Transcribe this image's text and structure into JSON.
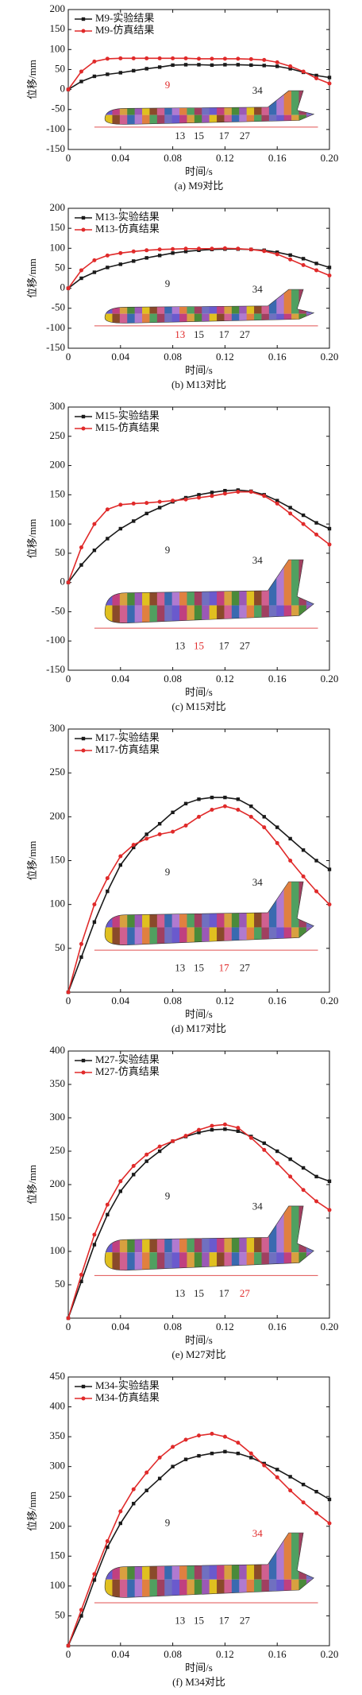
{
  "chart_data": [
    {
      "type": "line",
      "caption": "(a) M9对比",
      "xlabel": "时间/s",
      "ylabel": "位移/mm",
      "x": [
        0,
        0.01,
        0.02,
        0.03,
        0.04,
        0.05,
        0.06,
        0.07,
        0.08,
        0.09,
        0.1,
        0.11,
        0.12,
        0.13,
        0.14,
        0.15,
        0.16,
        0.17,
        0.18,
        0.19,
        0.2
      ],
      "xlim": [
        0,
        0.2
      ],
      "xticks": [
        0,
        0.04,
        0.08,
        0.12,
        0.16,
        {
          "value": 0.2,
          "label": "0.20"
        }
      ],
      "ylim": [
        -150,
        200
      ],
      "yticks": [
        -150,
        -100,
        -50,
        0,
        50,
        100,
        150,
        200
      ],
      "legend": "upper left",
      "series": [
        {
          "name": "M9-实验结果",
          "color": "#1a1a1a",
          "marker": "square",
          "values": [
            0,
            20,
            33,
            38,
            42,
            47,
            52,
            56,
            61,
            62,
            62,
            61,
            62,
            62,
            61,
            60,
            58,
            52,
            43,
            35,
            30
          ]
        },
        {
          "name": "M9-仿真结果",
          "color": "#e02a2a",
          "marker": "circle",
          "values": [
            0,
            45,
            70,
            77,
            78,
            78,
            78,
            78,
            78,
            78,
            77,
            77,
            77,
            77,
            76,
            74,
            68,
            58,
            45,
            28,
            15
          ]
        }
      ],
      "inset_labels": [
        {
          "text": "9",
          "color": "#e02a2a"
        },
        {
          "text": "34",
          "color": "#222"
        },
        {
          "text": "13",
          "color": "#222"
        },
        {
          "text": "15",
          "color": "#222"
        },
        {
          "text": "17",
          "color": "#222"
        },
        {
          "text": "27",
          "color": "#222"
        }
      ]
    },
    {
      "type": "line",
      "caption": "(b) M13对比",
      "xlabel": "时间/s",
      "ylabel": "位移/mm",
      "x": [
        0,
        0.01,
        0.02,
        0.03,
        0.04,
        0.05,
        0.06,
        0.07,
        0.08,
        0.09,
        0.1,
        0.11,
        0.12,
        0.13,
        0.14,
        0.15,
        0.16,
        0.17,
        0.18,
        0.19,
        0.2
      ],
      "xlim": [
        0,
        0.2
      ],
      "xticks": [
        0,
        0.04,
        0.08,
        0.12,
        0.16,
        {
          "value": 0.2,
          "label": "0.20"
        }
      ],
      "ylim": [
        -150,
        200
      ],
      "yticks": [
        -150,
        -100,
        -50,
        0,
        50,
        100,
        150,
        200
      ],
      "legend": "upper left",
      "series": [
        {
          "name": "M13-实验结果",
          "color": "#1a1a1a",
          "marker": "square",
          "values": [
            0,
            25,
            40,
            52,
            60,
            68,
            76,
            82,
            88,
            92,
            95,
            97,
            98,
            98,
            97,
            95,
            90,
            83,
            74,
            62,
            52
          ]
        },
        {
          "name": "M13-仿真结果",
          "color": "#e02a2a",
          "marker": "circle",
          "values": [
            0,
            45,
            70,
            82,
            88,
            92,
            95,
            97,
            98,
            99,
            99,
            99,
            100,
            99,
            97,
            93,
            85,
            72,
            58,
            45,
            32
          ]
        }
      ],
      "inset_labels": [
        {
          "text": "9",
          "color": "#222"
        },
        {
          "text": "34",
          "color": "#222"
        },
        {
          "text": "13",
          "color": "#e02a2a"
        },
        {
          "text": "15",
          "color": "#222"
        },
        {
          "text": "17",
          "color": "#222"
        },
        {
          "text": "27",
          "color": "#222"
        }
      ]
    },
    {
      "type": "line",
      "caption": "(c) M15对比",
      "xlabel": "时间/s",
      "ylabel": "位移/mm",
      "x": [
        0,
        0.01,
        0.02,
        0.03,
        0.04,
        0.05,
        0.06,
        0.07,
        0.08,
        0.09,
        0.1,
        0.11,
        0.12,
        0.13,
        0.14,
        0.15,
        0.16,
        0.17,
        0.18,
        0.19,
        0.2
      ],
      "xlim": [
        0,
        0.2
      ],
      "xticks": [
        0,
        0.04,
        0.08,
        0.12,
        0.16,
        {
          "value": 0.2,
          "label": "0.20"
        }
      ],
      "ylim": [
        -150,
        300
      ],
      "yticks": [
        -150,
        -100,
        -50,
        0,
        50,
        100,
        150,
        200,
        250,
        300
      ],
      "legend": "upper left",
      "series": [
        {
          "name": "M15-实验结果",
          "color": "#1a1a1a",
          "marker": "square",
          "values": [
            0,
            30,
            55,
            75,
            92,
            105,
            118,
            128,
            138,
            145,
            150,
            154,
            157,
            158,
            156,
            150,
            140,
            128,
            115,
            102,
            92
          ]
        },
        {
          "name": "M15-仿真结果",
          "color": "#e02a2a",
          "marker": "circle",
          "values": [
            0,
            60,
            100,
            125,
            133,
            135,
            136,
            138,
            140,
            142,
            145,
            148,
            152,
            155,
            155,
            148,
            135,
            118,
            100,
            82,
            65
          ]
        }
      ],
      "inset_labels": [
        {
          "text": "9",
          "color": "#222"
        },
        {
          "text": "34",
          "color": "#222"
        },
        {
          "text": "13",
          "color": "#222"
        },
        {
          "text": "15",
          "color": "#e02a2a"
        },
        {
          "text": "17",
          "color": "#222"
        },
        {
          "text": "27",
          "color": "#222"
        }
      ]
    },
    {
      "type": "line",
      "caption": "(d) M17对比",
      "xlabel": "时间/s",
      "ylabel": "位移/mm",
      "x": [
        0,
        0.01,
        0.02,
        0.03,
        0.04,
        0.05,
        0.06,
        0.07,
        0.08,
        0.09,
        0.1,
        0.11,
        0.12,
        0.13,
        0.14,
        0.15,
        0.16,
        0.17,
        0.18,
        0.19,
        0.2
      ],
      "xlim": [
        0,
        0.2
      ],
      "xticks": [
        0,
        0.04,
        0.08,
        0.12,
        0.16,
        {
          "value": 0.2,
          "label": "0.20"
        }
      ],
      "ylim": [
        0,
        300
      ],
      "yticks": [
        50,
        100,
        150,
        200,
        250,
        300
      ],
      "legend": "upper left",
      "series": [
        {
          "name": "M17-实验结果",
          "color": "#1a1a1a",
          "marker": "square",
          "values": [
            0,
            40,
            80,
            115,
            145,
            165,
            180,
            192,
            205,
            215,
            220,
            222,
            222,
            220,
            212,
            200,
            188,
            175,
            162,
            150,
            140
          ]
        },
        {
          "name": "M17-仿真结果",
          "color": "#e02a2a",
          "marker": "circle",
          "values": [
            0,
            55,
            100,
            130,
            155,
            168,
            175,
            180,
            183,
            190,
            200,
            208,
            212,
            208,
            200,
            188,
            170,
            150,
            132,
            115,
            100
          ]
        }
      ],
      "inset_labels": [
        {
          "text": "9",
          "color": "#222"
        },
        {
          "text": "34",
          "color": "#222"
        },
        {
          "text": "13",
          "color": "#222"
        },
        {
          "text": "15",
          "color": "#222"
        },
        {
          "text": "17",
          "color": "#e02a2a"
        },
        {
          "text": "27",
          "color": "#222"
        }
      ]
    },
    {
      "type": "line",
      "caption": "(e) M27对比",
      "xlabel": "时间/s",
      "ylabel": "位移/mm",
      "x": [
        0,
        0.01,
        0.02,
        0.03,
        0.04,
        0.05,
        0.06,
        0.07,
        0.08,
        0.09,
        0.1,
        0.11,
        0.12,
        0.13,
        0.14,
        0.15,
        0.16,
        0.17,
        0.18,
        0.19,
        0.2
      ],
      "xlim": [
        0,
        0.2
      ],
      "xticks": [
        0,
        0.04,
        0.08,
        0.12,
        0.16,
        {
          "value": 0.2,
          "label": "0.20"
        }
      ],
      "ylim": [
        0,
        400
      ],
      "yticks": [
        50,
        100,
        150,
        200,
        250,
        300,
        350,
        400
      ],
      "legend": "upper left",
      "series": [
        {
          "name": "M27-实验结果",
          "color": "#1a1a1a",
          "marker": "square",
          "values": [
            0,
            55,
            110,
            155,
            190,
            215,
            235,
            250,
            265,
            272,
            278,
            282,
            283,
            280,
            272,
            262,
            250,
            238,
            225,
            212,
            205
          ]
        },
        {
          "name": "M27-仿真结果",
          "color": "#e02a2a",
          "marker": "circle",
          "values": [
            0,
            65,
            125,
            170,
            205,
            228,
            245,
            257,
            265,
            273,
            282,
            288,
            290,
            285,
            270,
            252,
            232,
            212,
            192,
            175,
            162
          ]
        }
      ],
      "inset_labels": [
        {
          "text": "9",
          "color": "#222"
        },
        {
          "text": "34",
          "color": "#222"
        },
        {
          "text": "13",
          "color": "#222"
        },
        {
          "text": "15",
          "color": "#222"
        },
        {
          "text": "17",
          "color": "#222"
        },
        {
          "text": "27",
          "color": "#e02a2a"
        }
      ]
    },
    {
      "type": "line",
      "caption": "(f) M34对比",
      "xlabel": "时间/s",
      "ylabel": "位移/mm",
      "x": [
        0,
        0.01,
        0.02,
        0.03,
        0.04,
        0.05,
        0.06,
        0.07,
        0.08,
        0.09,
        0.1,
        0.11,
        0.12,
        0.13,
        0.14,
        0.15,
        0.16,
        0.17,
        0.18,
        0.19,
        0.2
      ],
      "xlim": [
        0,
        0.2
      ],
      "xticks": [
        0,
        0.04,
        0.08,
        0.12,
        0.16,
        {
          "value": 0.2,
          "label": "0.20"
        }
      ],
      "ylim": [
        0,
        450
      ],
      "yticks": [
        50,
        100,
        150,
        200,
        250,
        300,
        350,
        400,
        450
      ],
      "legend": "upper left",
      "series": [
        {
          "name": "M34-实验结果",
          "color": "#1a1a1a",
          "marker": "square",
          "values": [
            0,
            50,
            110,
            165,
            205,
            238,
            260,
            280,
            300,
            312,
            318,
            322,
            325,
            322,
            315,
            305,
            295,
            283,
            270,
            258,
            245
          ]
        },
        {
          "name": "M34-仿真结果",
          "color": "#e02a2a",
          "marker": "circle",
          "values": [
            0,
            60,
            120,
            175,
            225,
            262,
            290,
            315,
            333,
            345,
            352,
            355,
            350,
            340,
            322,
            302,
            282,
            260,
            240,
            222,
            205
          ]
        }
      ],
      "inset_labels": [
        {
          "text": "9",
          "color": "#222"
        },
        {
          "text": "34",
          "color": "#e02a2a"
        },
        {
          "text": "13",
          "color": "#222"
        },
        {
          "text": "15",
          "color": "#222"
        },
        {
          "text": "17",
          "color": "#222"
        },
        {
          "text": "27",
          "color": "#222"
        }
      ]
    }
  ]
}
